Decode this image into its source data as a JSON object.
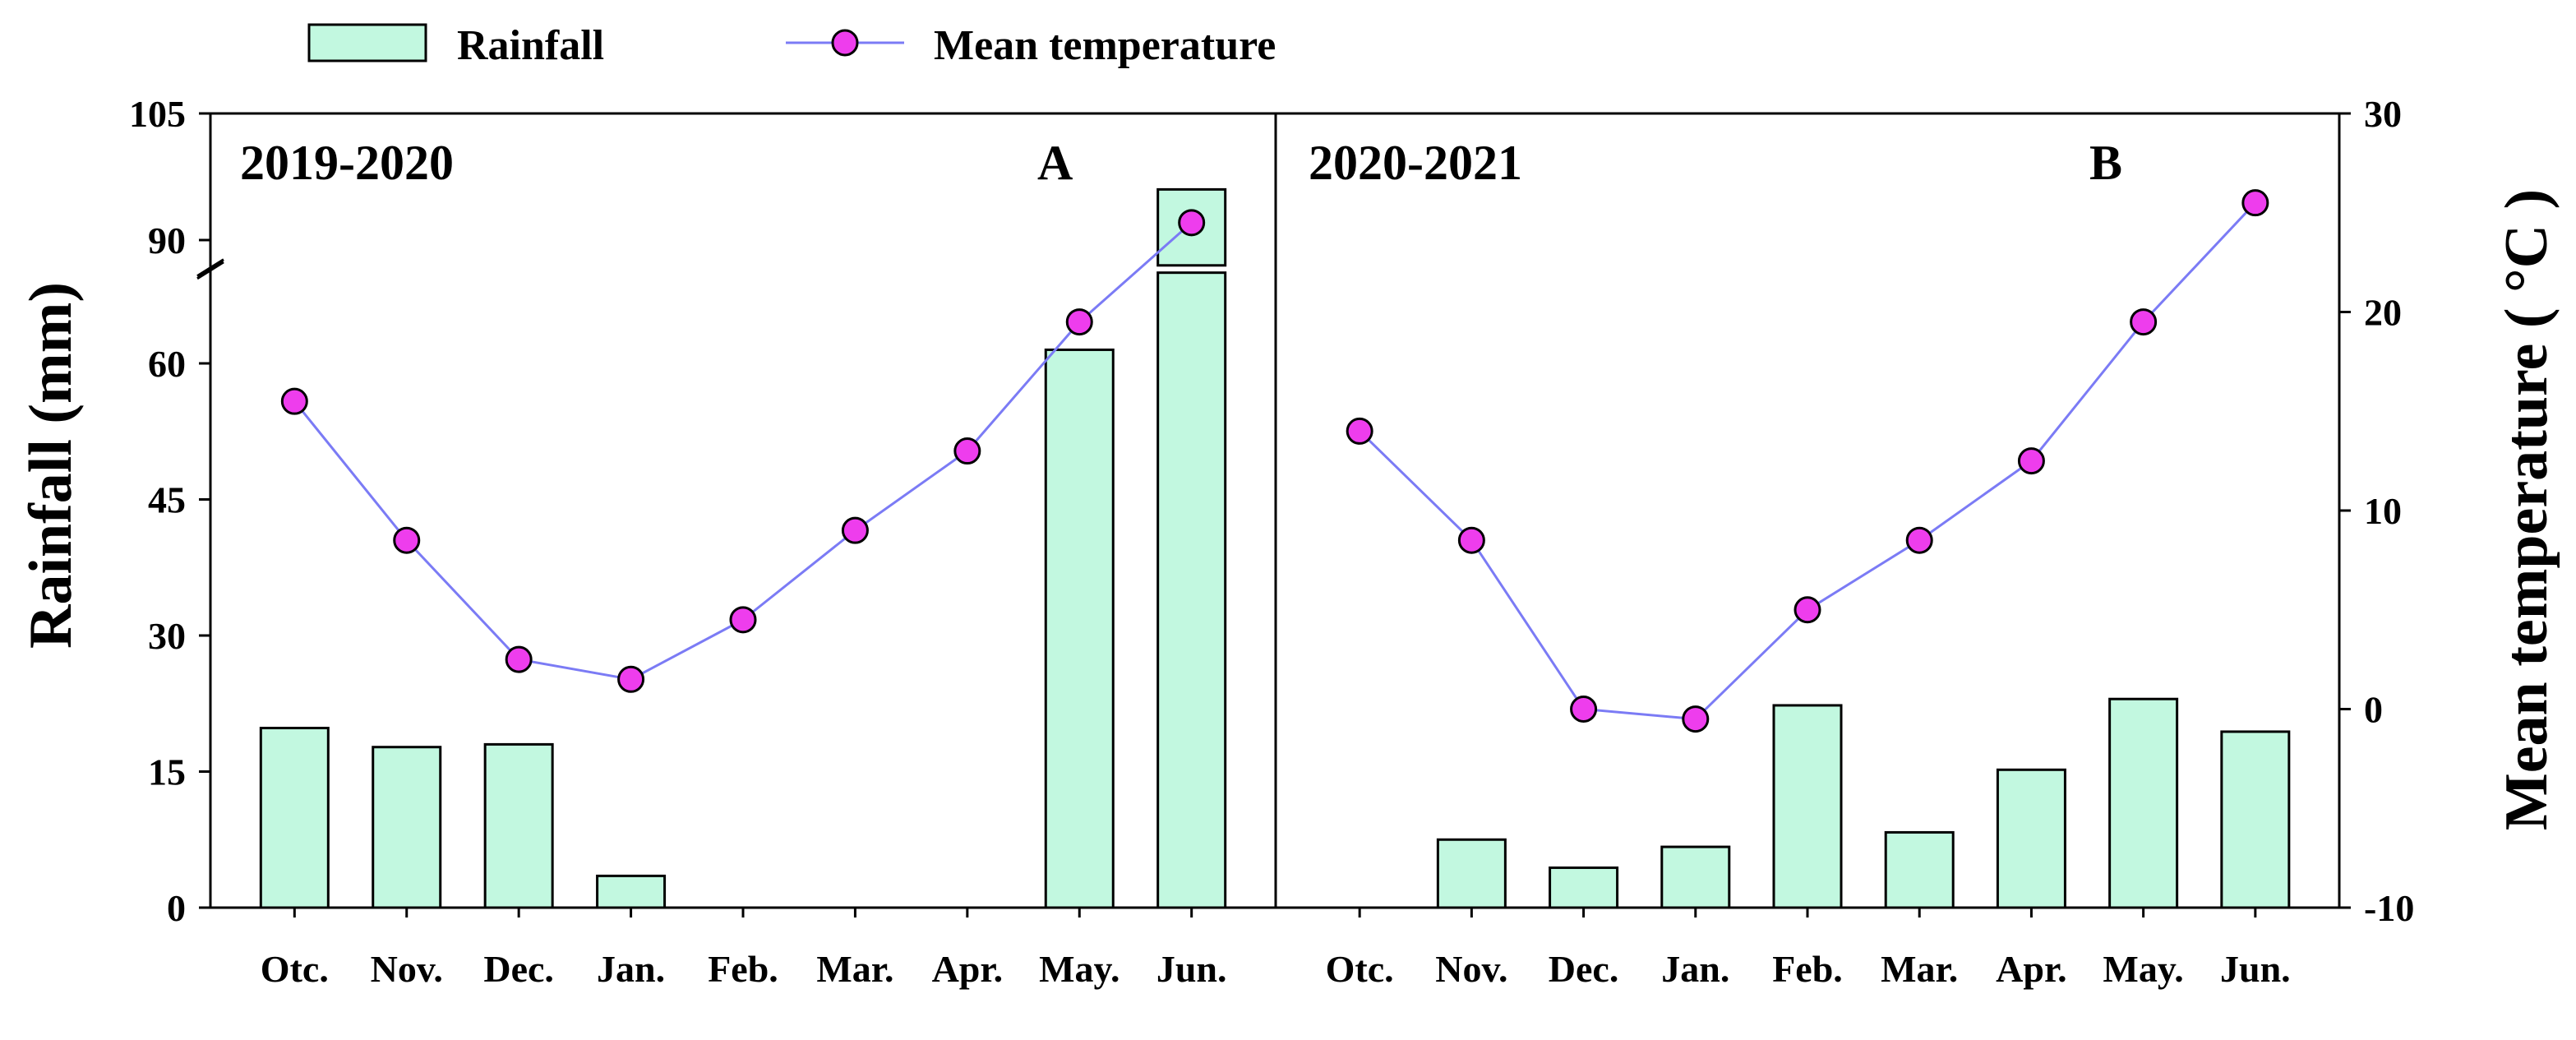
{
  "chart_data": {
    "type": "bar+line",
    "categories": [
      "Otc.",
      "Nov.",
      "Dec.",
      "Jan.",
      "Feb.",
      "Mar.",
      "Apr.",
      "May.",
      "Jun."
    ],
    "legend": {
      "placement": "top",
      "bar_label": "Rainfall",
      "line_label": "Mean temperature"
    },
    "y_left": {
      "label": "Rainfall (mm)",
      "ticks": [
        "0",
        "15",
        "30",
        "45",
        "60",
        "90",
        "105"
      ],
      "segments": [
        [
          0,
          70
        ],
        [
          87,
          105
        ]
      ],
      "axis_break": true
    },
    "y_right": {
      "label": "Mean temperature ( °C )",
      "ticks": [
        "-10",
        "0",
        "10",
        "20",
        "30"
      ],
      "range": [
        -10,
        30
      ]
    },
    "panels": [
      {
        "title": "2019-2020",
        "letter": "A",
        "rainfall": [
          19.8,
          17.7,
          18.0,
          3.5,
          0,
          0,
          0,
          61.5,
          96
        ],
        "temperature": [
          15.5,
          8.5,
          2.5,
          1.5,
          4.5,
          9.0,
          13.0,
          19.5,
          24.5
        ]
      },
      {
        "title": "2020-2021",
        "letter": "B",
        "rainfall": [
          0,
          7.5,
          4.4,
          6.7,
          22.3,
          8.3,
          15.2,
          23.0,
          19.4
        ],
        "temperature": [
          14.0,
          8.5,
          0,
          -0.5,
          5.0,
          8.5,
          12.5,
          19.5,
          25.5
        ]
      }
    ],
    "colors": {
      "bar_fill": "#c2f8e0",
      "bar_stroke": "#000000",
      "line": "#7b7bf5",
      "marker": "#ee3ded"
    }
  }
}
